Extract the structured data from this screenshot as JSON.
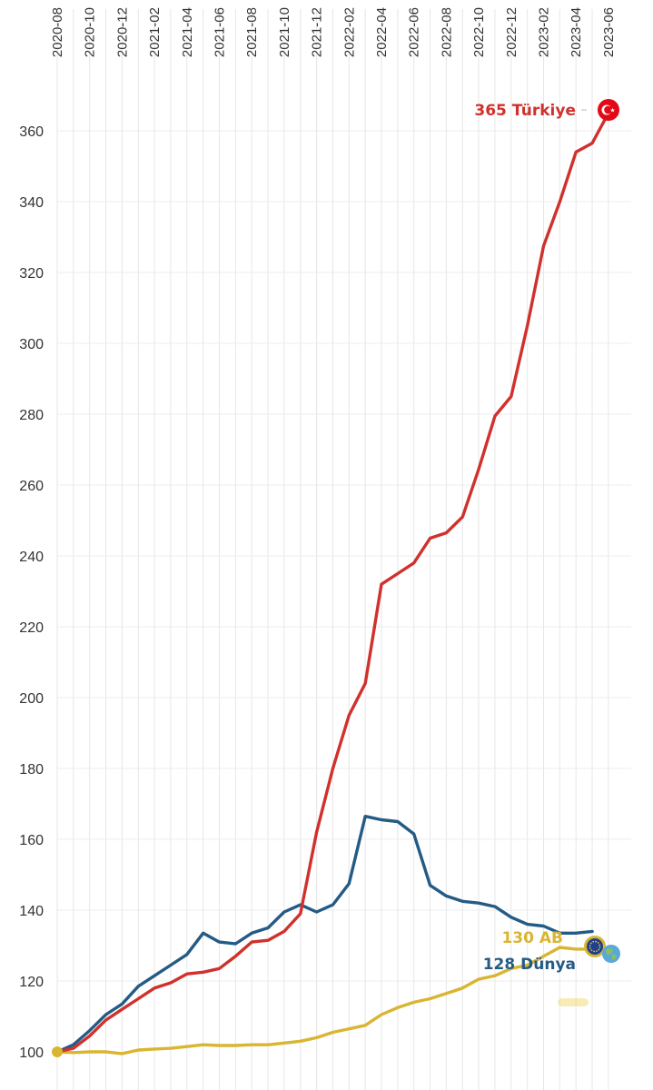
{
  "chart_data": {
    "type": "line",
    "xlabel": "",
    "ylabel": "",
    "ylim": [
      100,
      370
    ],
    "y_ticks": [
      "100",
      "120",
      "140",
      "160",
      "180",
      "200",
      "220",
      "240",
      "260",
      "280",
      "300",
      "320",
      "340",
      "360"
    ],
    "x_ticks": [
      "2020-08",
      "2020-10",
      "2020-12",
      "2021-02",
      "2021-04",
      "2021-06",
      "2021-08",
      "2021-10",
      "2021-12",
      "2022-02",
      "2022-04",
      "2022-06",
      "2022-08",
      "2022-10",
      "2022-12",
      "2023-02",
      "2023-04",
      "2023-06"
    ],
    "x_axis_position": "top",
    "grid": true,
    "categories": [
      "2020-08",
      "2020-09",
      "2020-10",
      "2020-11",
      "2020-12",
      "2021-01",
      "2021-02",
      "2021-03",
      "2021-04",
      "2021-05",
      "2021-06",
      "2021-07",
      "2021-08",
      "2021-09",
      "2021-10",
      "2021-11",
      "2021-12",
      "2022-01",
      "2022-02",
      "2022-03",
      "2022-04",
      "2022-05",
      "2022-06",
      "2022-07",
      "2022-08",
      "2022-09",
      "2022-10",
      "2022-11",
      "2022-12",
      "2023-01",
      "2023-02",
      "2023-03",
      "2023-04",
      "2023-05",
      "2023-06"
    ],
    "series": [
      {
        "name": "Türkiye",
        "end_label": "365 Türkiye",
        "color": "#d0312d",
        "values": [
          100,
          101,
          104.5,
          109,
          112,
          115,
          118,
          119.5,
          122,
          122.5,
          123.5,
          127,
          131,
          131.5,
          134,
          139,
          162,
          180,
          195,
          204,
          232,
          235,
          238,
          245,
          246.5,
          251,
          264.5,
          279.5,
          285,
          305,
          327.5,
          340,
          354,
          356.5,
          365
        ]
      },
      {
        "name": "Dünya",
        "end_label": "128 Dünya",
        "color": "#245b85",
        "values": [
          100,
          102,
          106,
          110.5,
          113.5,
          118.5,
          121.5,
          124.5,
          127.5,
          133.5,
          131,
          130.5,
          133.5,
          135,
          139.5,
          141.5,
          139.5,
          141.5,
          147.5,
          166.5,
          165.5,
          165,
          161.5,
          147,
          144,
          142.5,
          142,
          141,
          138,
          136,
          135.5,
          133.5,
          133.5,
          134,
          null
        ]
      },
      {
        "name": "AB",
        "end_label": "130 AB",
        "color": "#d9b531",
        "values": [
          100,
          99.8,
          100,
          100,
          99.5,
          100.5,
          100.8,
          101,
          101.5,
          102,
          101.8,
          101.8,
          102,
          102,
          102.5,
          103,
          104,
          105.5,
          106.5,
          107.5,
          110.5,
          112.5,
          114,
          115,
          116.5,
          118,
          120.5,
          121.5,
          123.5,
          124.5,
          127,
          129.5,
          129,
          129,
          null
        ]
      }
    ]
  }
}
